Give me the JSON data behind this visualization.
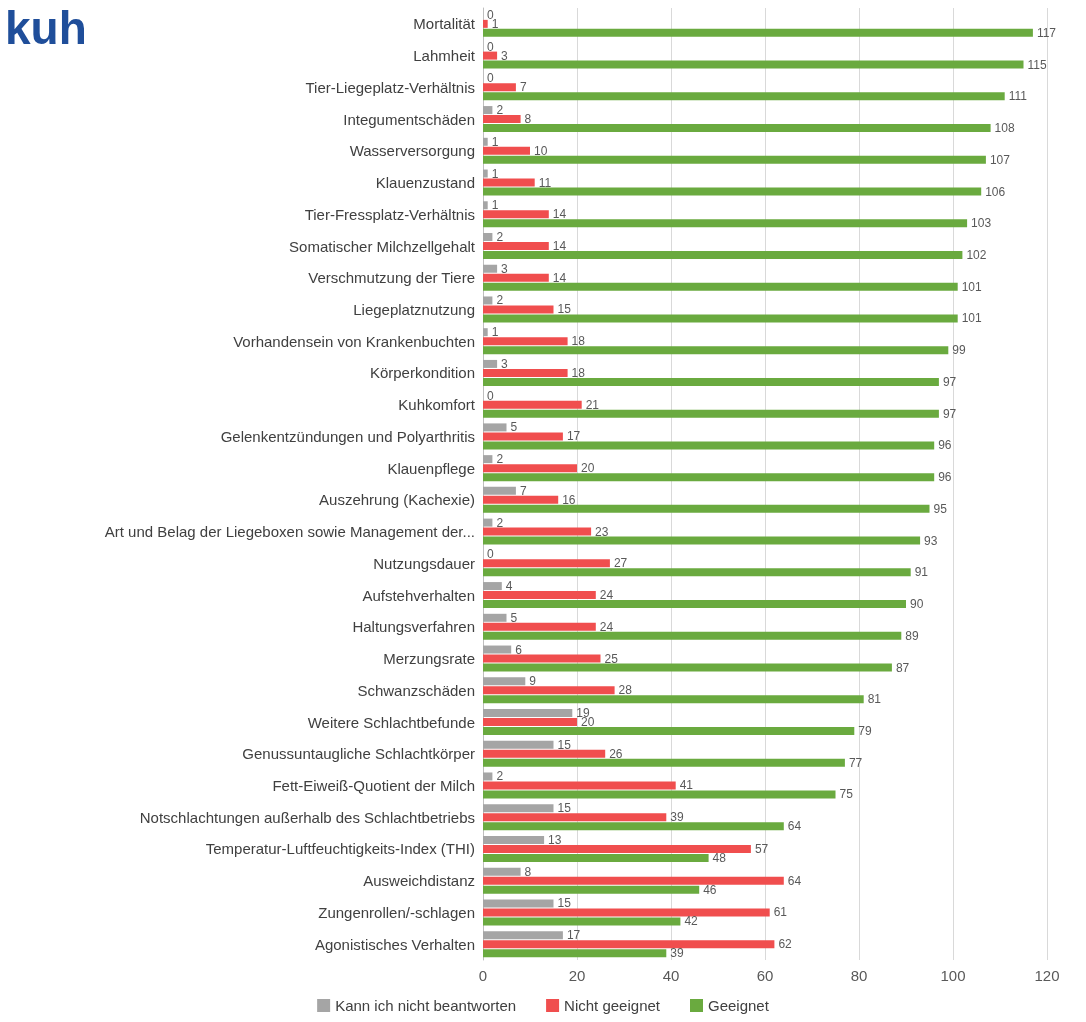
{
  "chart_data": {
    "type": "bar",
    "orientation": "horizontal",
    "title": "kuh",
    "categories": [
      "Mortalität",
      "Lahmheit",
      "Tier-Liegeplatz-Verhältnis",
      "Integumentschäden",
      "Wasserversorgung",
      "Klauenzustand",
      "Tier-Fressplatz-Verhältnis",
      "Somatischer Milchzellgehalt",
      "Verschmutzung der Tiere",
      "Liegeplatznutzung",
      "Vorhandensein von Krankenbuchten",
      "Körperkondition",
      "Kuhkomfort",
      "Gelenkentzündungen und Polyarthritis",
      "Klauenpflege",
      "Auszehrung (Kachexie)",
      "Art und Belag der Liegeboxen sowie Management der...",
      "Nutzungsdauer",
      "Aufstehverhalten",
      "Haltungsverfahren",
      "Merzungsrate",
      "Schwanzschäden",
      "Weitere Schlachtbefunde",
      "Genussuntaugliche Schlachtkörper",
      "Fett-Eiweiß-Quotient der Milch",
      "Notschlachtungen außerhalb des Schlachtbetriebs",
      "Temperatur-Luftfeuchtigkeits-Index (THI)",
      "Ausweichdistanz",
      "Zungenrollen/-schlagen",
      "Agonistisches Verhalten"
    ],
    "series": [
      {
        "name": "Kann ich nicht beantworten",
        "color": "#a5a5a5",
        "values": [
          0,
          0,
          0,
          2,
          1,
          1,
          1,
          2,
          3,
          2,
          1,
          3,
          0,
          5,
          2,
          7,
          2,
          0,
          4,
          5,
          6,
          9,
          19,
          15,
          2,
          15,
          13,
          8,
          15,
          17
        ]
      },
      {
        "name": "Nicht geeignet",
        "color": "#f04e4e",
        "values": [
          1,
          3,
          7,
          8,
          10,
          11,
          14,
          14,
          14,
          15,
          18,
          18,
          21,
          17,
          20,
          16,
          23,
          27,
          24,
          24,
          25,
          28,
          20,
          26,
          41,
          39,
          57,
          64,
          61,
          62
        ]
      },
      {
        "name": "Geeignet",
        "color": "#6aaa3f",
        "values": [
          117,
          115,
          111,
          108,
          107,
          106,
          103,
          102,
          101,
          101,
          99,
          97,
          97,
          96,
          96,
          95,
          93,
          91,
          90,
          89,
          87,
          81,
          79,
          77,
          75,
          64,
          48,
          46,
          42,
          39
        ]
      }
    ],
    "xlim": [
      0,
      120
    ],
    "xticks": [
      0,
      20,
      40,
      60,
      80,
      100,
      120
    ],
    "grid": "x",
    "legend": "bottom",
    "data_labels": true
  }
}
